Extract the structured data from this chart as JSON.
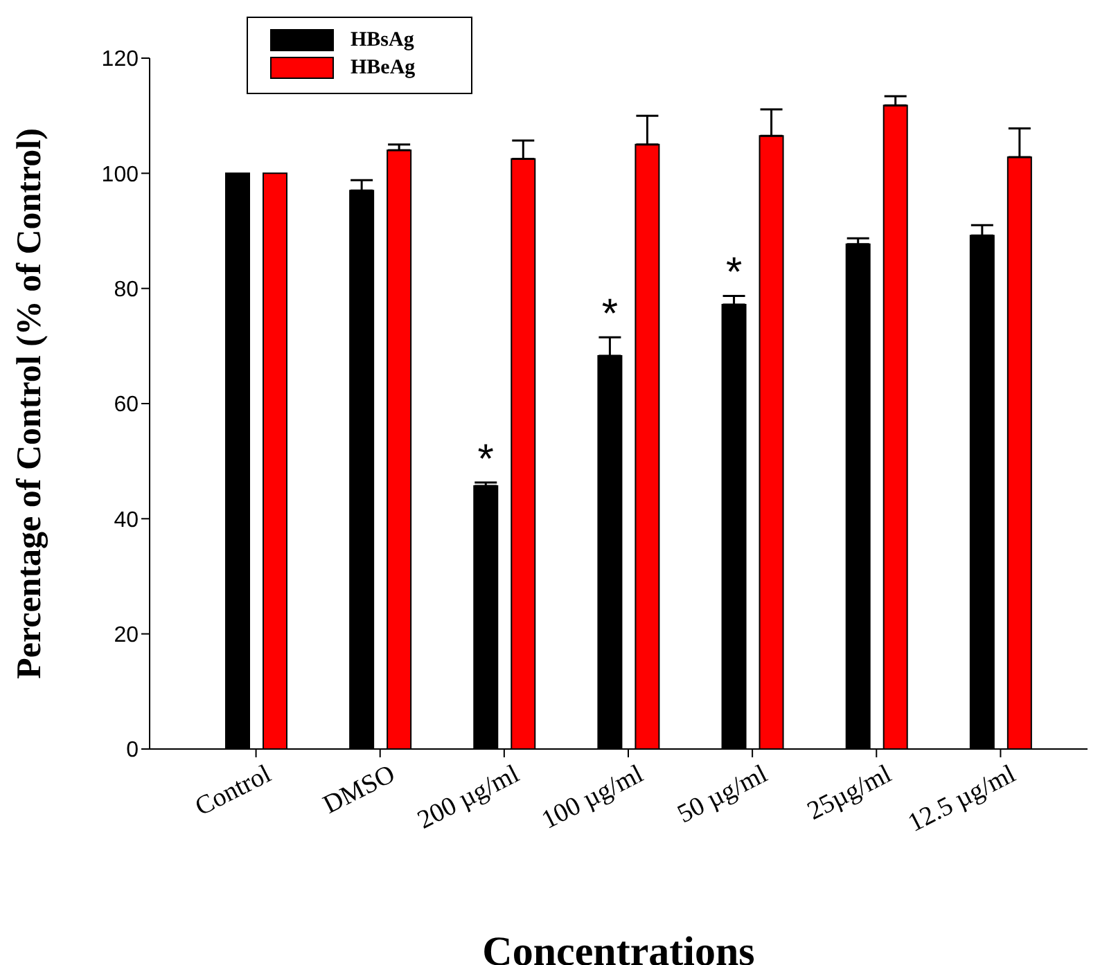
{
  "chart_data": {
    "type": "bar",
    "xlabel": "Concentrations",
    "ylabel": "Percentage of Control (% of Control)",
    "categories": [
      "Control",
      "DMSO",
      "200 µg/ml",
      "100 µg/ml",
      "50 µg/ml",
      "25µg/ml",
      "12.5 µg/ml"
    ],
    "series": [
      {
        "name": "HBsAg",
        "color": "#000000",
        "values": [
          100,
          97,
          45.7,
          68.3,
          77.2,
          87.7,
          89.2
        ],
        "errors": [
          null,
          1.8,
          0.6,
          3.2,
          1.5,
          1,
          1.8
        ]
      },
      {
        "name": "HBeAg",
        "color": "#ff0000",
        "values": [
          100,
          104,
          102.5,
          105,
          106.5,
          111.8,
          102.8
        ],
        "errors": [
          null,
          1,
          3.2,
          5,
          4.6,
          1.6,
          5
        ]
      }
    ],
    "ylim": [
      0,
      120
    ],
    "yticks": [
      0,
      20,
      40,
      60,
      80,
      100,
      120
    ],
    "grid": false,
    "legend": "top left",
    "annotations": [
      {
        "text": "*",
        "x": "200 µg/ml",
        "y": 45.7
      },
      {
        "text": "*",
        "x": "100 µg/ml",
        "y": 68.3
      },
      {
        "text": "*",
        "x": "50 µg/ml",
        "y": 77.2
      }
    ]
  }
}
